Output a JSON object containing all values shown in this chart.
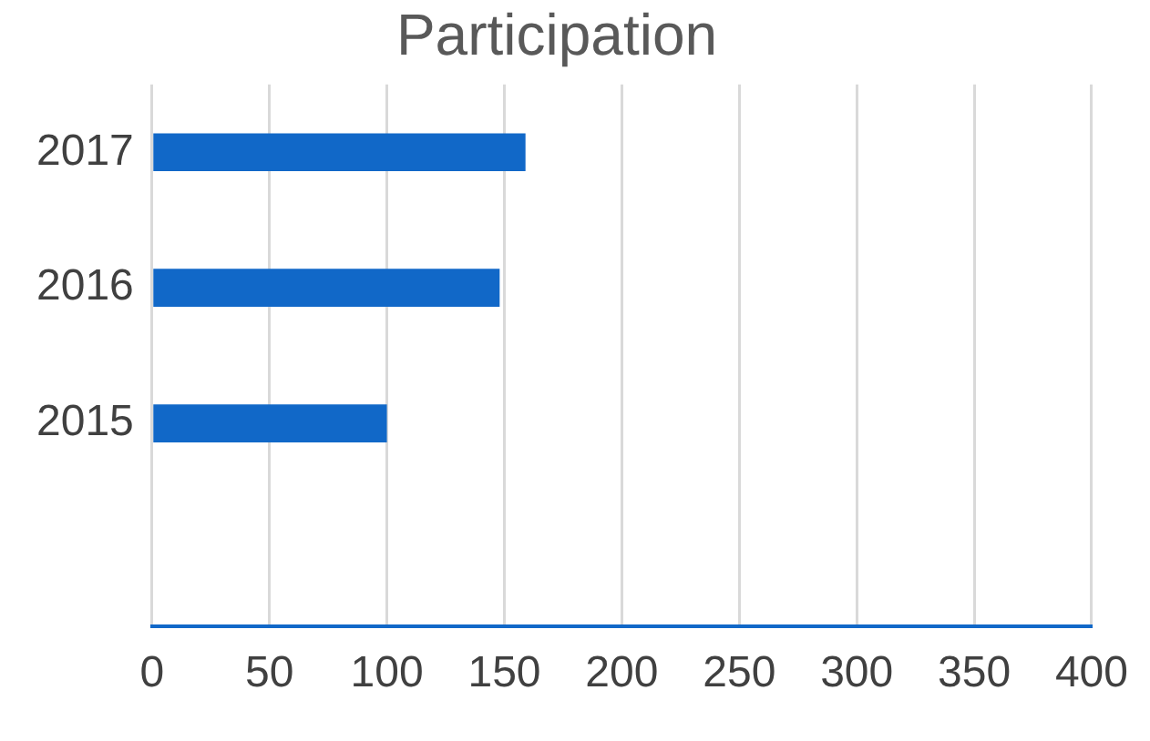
{
  "chart_data": {
    "type": "bar",
    "orientation": "horizontal",
    "title": "Participation",
    "categories": [
      "2017",
      "2016",
      "2015",
      null
    ],
    "values": [
      159,
      148,
      100,
      null
    ],
    "color": "#1168c8",
    "xlim": [
      0,
      400
    ],
    "xticks": [
      0,
      50,
      100,
      150,
      200,
      250,
      300,
      350,
      400
    ],
    "grid": "x",
    "legend": false
  }
}
